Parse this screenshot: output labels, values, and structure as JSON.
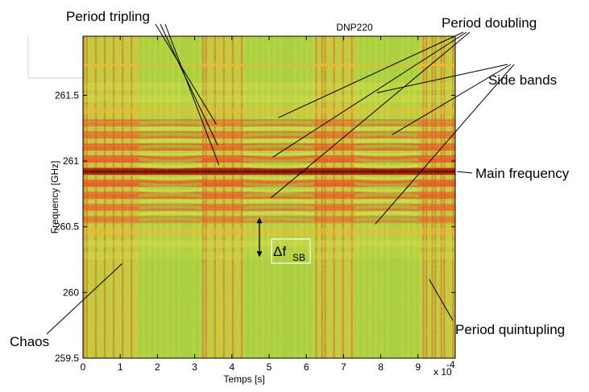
{
  "chart_data": {
    "type": "heatmap",
    "title": "DNP220",
    "xlabel": "Temps [s]",
    "ylabel": "Frequency [GHz]",
    "x_multiplier": "x 10",
    "x_multiplier_exp": "-4",
    "xlim": [
      0,
      10
    ],
    "ylim": [
      259.5,
      261.95
    ],
    "x_ticks": [
      "0",
      "1",
      "2",
      "3",
      "4",
      "5",
      "6",
      "7",
      "8",
      "9"
    ],
    "x_tick_values": [
      0,
      1,
      2,
      3,
      4,
      5,
      6,
      7,
      8,
      9
    ],
    "y_ticks": [
      "259.5",
      "260",
      "260.5",
      "261",
      "261.5"
    ],
    "y_tick_values": [
      259.5,
      260,
      260.5,
      261,
      261.5
    ],
    "main_frequency_ghz": 260.92,
    "colormap": [
      "#9ccc3c",
      "#d8e24a",
      "#f6b431",
      "#ee3f1c",
      "#b3150c",
      "#5a0a05"
    ],
    "bursts": [
      {
        "start": 1.5,
        "end": 3.2
      },
      {
        "start": 4.3,
        "end": 6.2
      },
      {
        "start": 7.3,
        "end": 9.0
      }
    ],
    "annotations": [
      {
        "text": "Period tripling",
        "targets": [
          [
            3.58,
            261.28
          ],
          [
            3.62,
            261.12
          ],
          [
            3.65,
            260.97
          ]
        ]
      },
      {
        "text": "Period doubling",
        "targets": [
          [
            5.25,
            261.33
          ],
          [
            5.1,
            261.03
          ],
          [
            5.05,
            260.72
          ]
        ]
      },
      {
        "text": "Side bands",
        "targets": [
          [
            7.9,
            261.52
          ],
          [
            8.3,
            261.2
          ],
          [
            7.85,
            260.52
          ]
        ]
      },
      {
        "text": "Main frequency",
        "targets": [
          [
            10.05,
            260.92
          ]
        ]
      },
      {
        "text": "Period quintupling",
        "targets": [
          [
            9.3,
            260.1
          ]
        ]
      },
      {
        "text": "Chaos",
        "targets": [
          [
            1.05,
            260.22
          ]
        ]
      }
    ],
    "delta_label": "Δf",
    "delta_subscript": "SB",
    "delta_range_ghz": [
      260.27,
      260.57
    ],
    "delta_x": 5.0
  }
}
